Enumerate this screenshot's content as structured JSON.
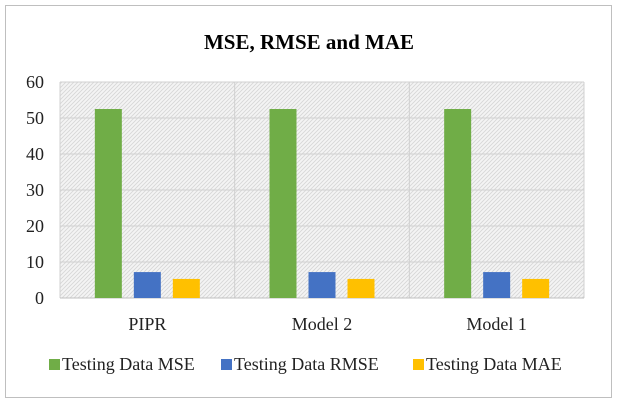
{
  "chart_data": {
    "type": "bar",
    "title": "MSE, RMSE and MAE",
    "categories": [
      "PIPR",
      "Model 2",
      "Model 1"
    ],
    "series": [
      {
        "name": "Testing Data MSE",
        "values": [
          52.5,
          52.5,
          52.5
        ],
        "color": "#70ad47"
      },
      {
        "name": "Testing Data RMSE",
        "values": [
          7.2,
          7.2,
          7.2
        ],
        "color": "#4472c4"
      },
      {
        "name": "Testing Data MAE",
        "values": [
          5.3,
          5.3,
          5.3
        ],
        "color": "#ffc000"
      }
    ],
    "yticks": [
      "0",
      "10",
      "20",
      "30",
      "40",
      "50",
      "60"
    ],
    "ylim": [
      0,
      60
    ],
    "xlabel": "",
    "ylabel": "",
    "grid": true,
    "legend_position": "bottom"
  }
}
